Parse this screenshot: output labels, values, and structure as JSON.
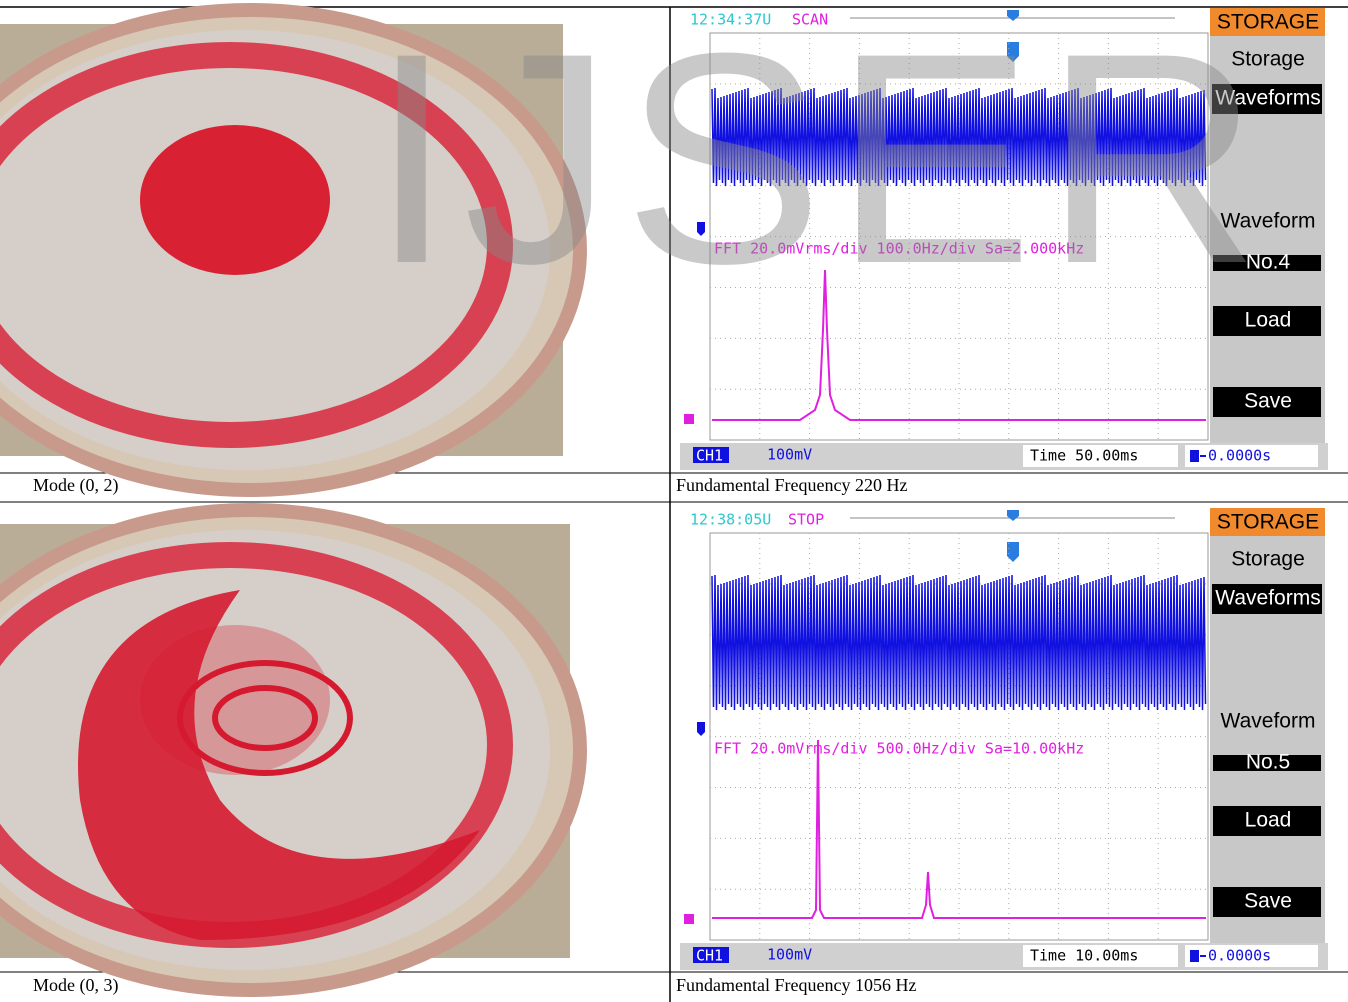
{
  "watermark": "IJSER",
  "figures": [
    {
      "photo_caption": "Mode (0, 2)",
      "scope": {
        "time": "12:34:37U",
        "status": "SCAN",
        "menu_title": "STORAGE",
        "menu": [
          "Storage",
          "Waveforms",
          "Waveform",
          "No.4",
          "Load",
          "Save"
        ],
        "fft_label": "FFT 20.0mVrms/div 100.0Hz/div Sa=2.000kHz",
        "channel": "CH1",
        "volts": "100mV",
        "timebase": "Time 50.00ms",
        "trigger": "0.0000s"
      },
      "scope_caption": "Fundamental Frequency 220 Hz"
    },
    {
      "photo_caption": "Mode (0, 3)",
      "scope": {
        "time": "12:38:05U",
        "status": "STOP",
        "menu_title": "STORAGE",
        "menu": [
          "Storage",
          "Waveforms",
          "Waveform",
          "No.5",
          "Load",
          "Save"
        ],
        "fft_label": "FFT 20.0mVrms/div 500.0Hz/div Sa=10.00kHz",
        "channel": "CH1",
        "volts": "100mV",
        "timebase": "Time 10.00ms",
        "trigger": "0.0000s"
      },
      "scope_caption": "Fundamental Frequency 1056 Hz"
    }
  ]
}
